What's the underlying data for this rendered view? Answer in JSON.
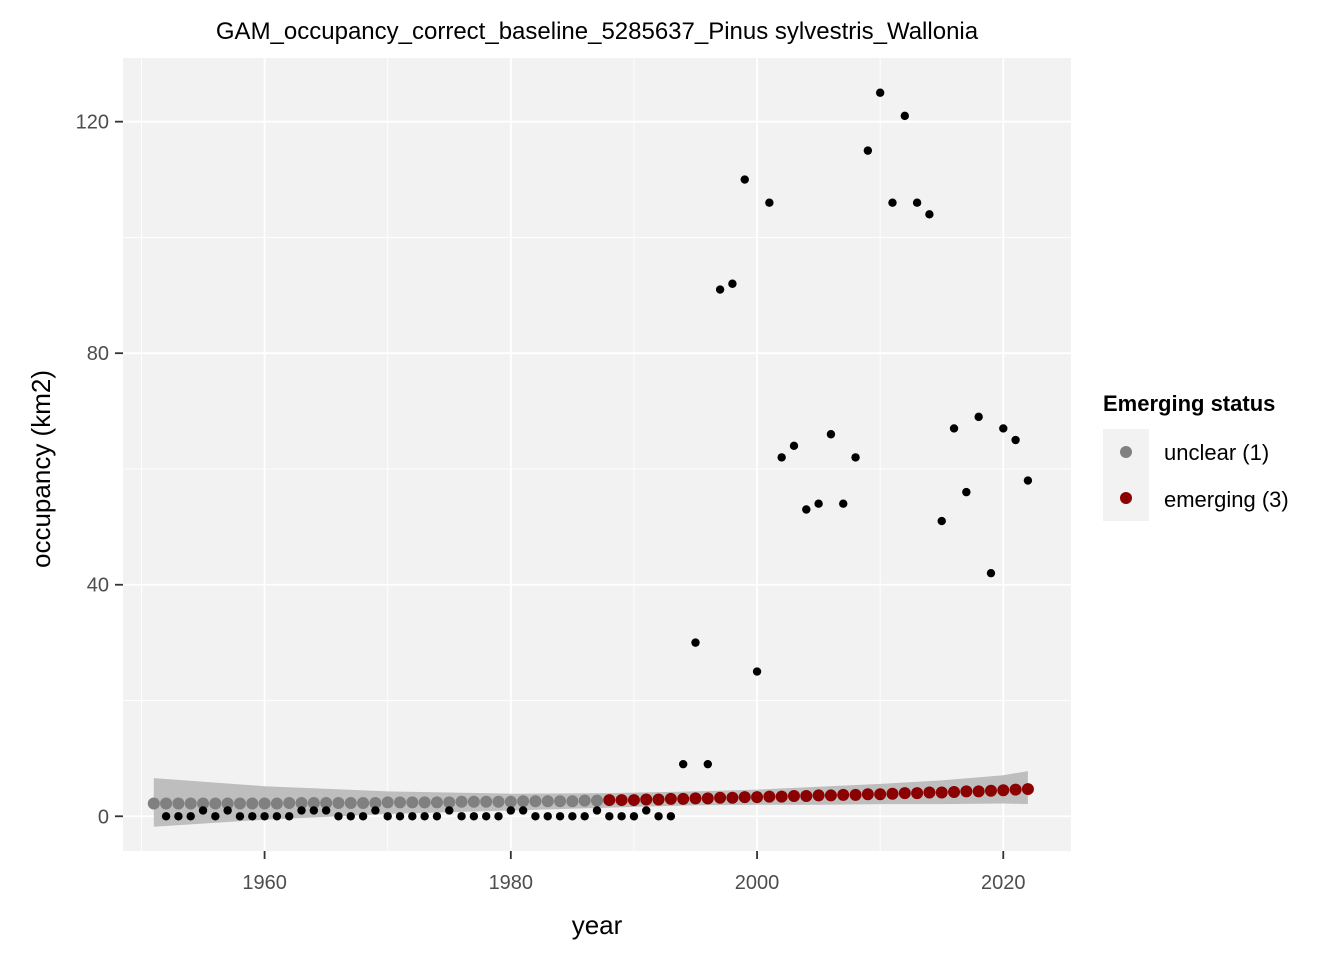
{
  "chart_data": {
    "type": "scatter",
    "title": "GAM_occupancy_correct_baseline_5285637_Pinus sylvestris_Wallonia",
    "xlabel": "year",
    "ylabel": "occupancy (km2)",
    "xlim": [
      1948.5,
      2025.5
    ],
    "ylim": [
      -6,
      131
    ],
    "x_ticks": [
      1960,
      1980,
      2000,
      2020
    ],
    "y_ticks": [
      0,
      40,
      80,
      120
    ],
    "grid": true,
    "legend": {
      "title": "Emerging status",
      "position": "right",
      "entries": [
        {
          "label": "unclear (1)",
          "color": "#808080"
        },
        {
          "label": "emerging (3)",
          "color": "#8b0000"
        }
      ]
    },
    "observed": {
      "color": "#000000",
      "x": [
        1952,
        1953,
        1954,
        1955,
        1956,
        1957,
        1958,
        1959,
        1960,
        1961,
        1962,
        1963,
        1964,
        1965,
        1966,
        1967,
        1968,
        1969,
        1970,
        1971,
        1972,
        1973,
        1974,
        1975,
        1976,
        1977,
        1978,
        1979,
        1980,
        1981,
        1982,
        1983,
        1984,
        1985,
        1986,
        1987,
        1988,
        1989,
        1990,
        1991,
        1992,
        1993,
        1994,
        1995,
        1996,
        1997,
        1998,
        1999,
        2000,
        2001,
        2002,
        2003,
        2004,
        2005,
        2006,
        2007,
        2008,
        2009,
        2010,
        2011,
        2012,
        2013,
        2014,
        2015,
        2016,
        2017,
        2018,
        2019,
        2020,
        2021,
        2022
      ],
      "y": [
        0,
        0,
        0,
        1,
        0,
        1,
        0,
        0,
        0,
        0,
        0,
        1,
        1,
        1,
        0,
        0,
        0,
        1,
        0,
        0,
        0,
        0,
        0,
        1,
        0,
        0,
        0,
        0,
        1,
        1,
        0,
        0,
        0,
        0,
        0,
        1,
        0,
        0,
        0,
        1,
        0,
        0,
        9,
        30,
        9,
        91,
        92,
        110,
        25,
        106,
        62,
        64,
        53,
        54,
        66,
        54,
        62,
        115,
        125,
        106,
        121,
        106,
        104,
        51,
        67,
        56,
        69,
        42,
        67,
        65,
        58
      ]
    },
    "fitted": {
      "x": [
        1951,
        1952,
        1953,
        1954,
        1955,
        1956,
        1957,
        1958,
        1959,
        1960,
        1961,
        1962,
        1963,
        1964,
        1965,
        1966,
        1967,
        1968,
        1969,
        1970,
        1971,
        1972,
        1973,
        1974,
        1975,
        1976,
        1977,
        1978,
        1979,
        1980,
        1981,
        1982,
        1983,
        1984,
        1985,
        1986,
        1987,
        1988,
        1989,
        1990,
        1991,
        1992,
        1993,
        1994,
        1995,
        1996,
        1997,
        1998,
        1999,
        2000,
        2001,
        2002,
        2003,
        2004,
        2005,
        2006,
        2007,
        2008,
        2009,
        2010,
        2011,
        2012,
        2013,
        2014,
        2015,
        2016,
        2017,
        2018,
        2019,
        2020,
        2021,
        2022
      ],
      "y": [
        2.2,
        2.2,
        2.2,
        2.2,
        2.2,
        2.2,
        2.2,
        2.2,
        2.2,
        2.2,
        2.2,
        2.3,
        2.3,
        2.3,
        2.3,
        2.3,
        2.3,
        2.3,
        2.3,
        2.4,
        2.4,
        2.4,
        2.4,
        2.4,
        2.4,
        2.5,
        2.5,
        2.5,
        2.5,
        2.5,
        2.6,
        2.6,
        2.6,
        2.6,
        2.6,
        2.7,
        2.7,
        2.8,
        2.8,
        2.8,
        2.9,
        2.9,
        3.0,
        3.0,
        3.1,
        3.1,
        3.2,
        3.2,
        3.3,
        3.3,
        3.4,
        3.4,
        3.5,
        3.5,
        3.6,
        3.6,
        3.7,
        3.7,
        3.8,
        3.8,
        3.9,
        4.0,
        4.0,
        4.1,
        4.1,
        4.2,
        4.3,
        4.3,
        4.4,
        4.5,
        4.6,
        4.7
      ],
      "status": [
        "unclear (1)",
        "unclear (1)",
        "unclear (1)",
        "unclear (1)",
        "unclear (1)",
        "unclear (1)",
        "unclear (1)",
        "unclear (1)",
        "unclear (1)",
        "unclear (1)",
        "unclear (1)",
        "unclear (1)",
        "unclear (1)",
        "unclear (1)",
        "unclear (1)",
        "unclear (1)",
        "unclear (1)",
        "unclear (1)",
        "unclear (1)",
        "unclear (1)",
        "unclear (1)",
        "unclear (1)",
        "unclear (1)",
        "unclear (1)",
        "unclear (1)",
        "unclear (1)",
        "unclear (1)",
        "unclear (1)",
        "unclear (1)",
        "unclear (1)",
        "unclear (1)",
        "unclear (1)",
        "unclear (1)",
        "unclear (1)",
        "unclear (1)",
        "unclear (1)",
        "unclear (1)",
        "emerging (3)",
        "emerging (3)",
        "emerging (3)",
        "emerging (3)",
        "emerging (3)",
        "emerging (3)",
        "emerging (3)",
        "emerging (3)",
        "emerging (3)",
        "emerging (3)",
        "emerging (3)",
        "emerging (3)",
        "emerging (3)",
        "emerging (3)",
        "emerging (3)",
        "emerging (3)",
        "emerging (3)",
        "emerging (3)",
        "emerging (3)",
        "emerging (3)",
        "emerging (3)",
        "emerging (3)",
        "emerging (3)",
        "emerging (3)",
        "emerging (3)",
        "emerging (3)",
        "emerging (3)",
        "emerging (3)",
        "emerging (3)",
        "emerging (3)",
        "emerging (3)",
        "emerging (3)",
        "emerging (3)",
        "emerging (3)",
        "emerging (3)"
      ]
    },
    "confidence_band": {
      "color": "#bebebe",
      "x": [
        1951,
        1960,
        1970,
        1980,
        1988,
        1995,
        2000,
        2005,
        2010,
        2015,
        2020,
        2022
      ],
      "lower": [
        -1.8,
        -0.6,
        0.4,
        1.0,
        1.5,
        1.9,
        2.0,
        2.0,
        2.1,
        2.1,
        2.2,
        2.1
      ],
      "upper": [
        6.6,
        5.2,
        4.3,
        3.9,
        4.0,
        4.3,
        4.6,
        5.1,
        5.6,
        6.2,
        7.1,
        7.8
      ]
    }
  }
}
